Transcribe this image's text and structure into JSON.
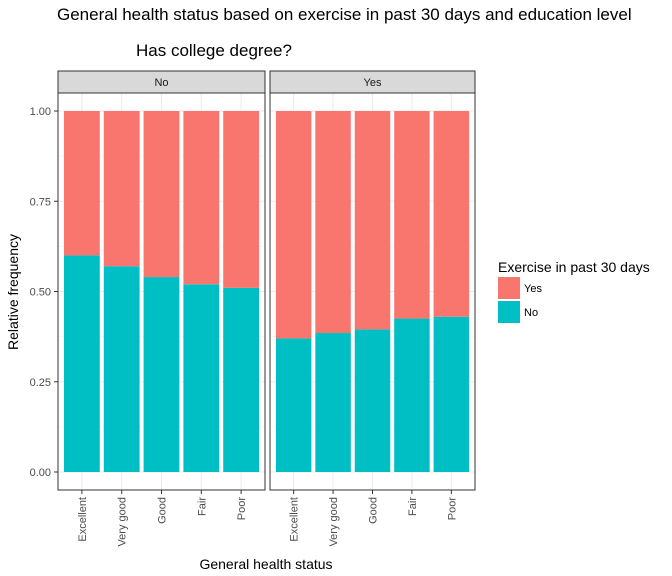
{
  "chart_data": {
    "type": "bar",
    "stacked": true,
    "title": "General health status based on exercise in past 30 days and education level",
    "subtitle": "Has college degree?",
    "xlabel": "General health status",
    "ylabel": "Relative frequency",
    "ylim": [
      0,
      1
    ],
    "yticks": [
      "0.00",
      "0.25",
      "0.50",
      "0.75",
      "1.00"
    ],
    "categories": [
      "Excellent",
      "Very good",
      "Good",
      "Fair",
      "Poor"
    ],
    "legend": {
      "title": "Exercise in past 30 days",
      "placement": "right",
      "items": [
        {
          "label": "Yes",
          "color": "#F8766D"
        },
        {
          "label": "No",
          "color": "#00BFC4"
        }
      ]
    },
    "facets": [
      {
        "label": "No",
        "series": [
          {
            "name": "No",
            "values": [
              0.6,
              0.57,
              0.54,
              0.52,
              0.51
            ]
          },
          {
            "name": "Yes",
            "values": [
              0.4,
              0.43,
              0.46,
              0.48,
              0.49
            ]
          }
        ]
      },
      {
        "label": "Yes",
        "series": [
          {
            "name": "No",
            "values": [
              0.37,
              0.385,
              0.395,
              0.425,
              0.43
            ]
          },
          {
            "name": "Yes",
            "values": [
              0.63,
              0.615,
              0.605,
              0.575,
              0.57
            ]
          }
        ]
      }
    ],
    "colors": {
      "Yes": "#F8766D",
      "No": "#00BFC4"
    },
    "grid": true
  }
}
